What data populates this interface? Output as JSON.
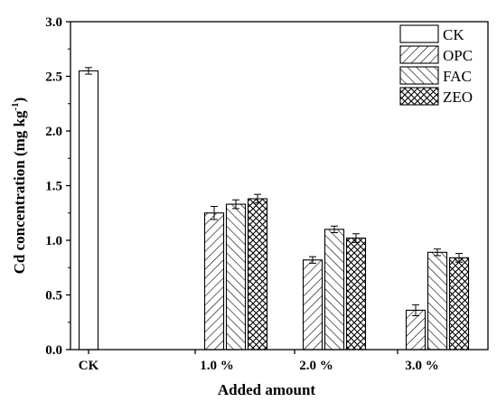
{
  "chart_data": {
    "type": "bar",
    "title": "",
    "xlabel": "Added amount",
    "ylabel": "Cd concentration (mg kg",
    "ylabel_sup": "-1",
    "ylabel_close": ")",
    "ylim": [
      0,
      3.0
    ],
    "yticks": [
      "0.0",
      "0.5",
      "1.0",
      "1.5",
      "2.0",
      "2.5",
      "3.0"
    ],
    "categories": [
      "CK",
      "1.0 %",
      "2.0 %",
      "3.0 %"
    ],
    "legend_position": "top-right",
    "grid": false,
    "series": [
      {
        "name": "CK",
        "pattern": "none",
        "values": [
          2.55,
          null,
          null,
          null
        ],
        "errors": [
          0.03,
          null,
          null,
          null
        ]
      },
      {
        "name": "OPC",
        "pattern": "forward-diagonal",
        "values": [
          null,
          1.25,
          0.82,
          0.36
        ],
        "errors": [
          null,
          0.06,
          0.03,
          0.05
        ]
      },
      {
        "name": "FAC",
        "pattern": "back-diagonal",
        "values": [
          null,
          1.33,
          1.1,
          0.89
        ],
        "errors": [
          null,
          0.04,
          0.03,
          0.03
        ]
      },
      {
        "name": "ZEO",
        "pattern": "crosshatch",
        "values": [
          null,
          1.38,
          1.02,
          0.84
        ],
        "errors": [
          null,
          0.04,
          0.04,
          0.04
        ]
      }
    ]
  }
}
